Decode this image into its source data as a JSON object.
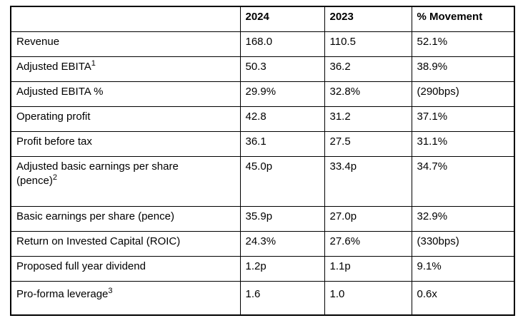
{
  "table": {
    "headers": [
      "",
      "2024",
      "2023",
      "% Movement"
    ],
    "rows": [
      {
        "label_lines": [
          "Revenue"
        ],
        "sup": "",
        "values": [
          "168.0",
          "110.5",
          "52.1%"
        ]
      },
      {
        "label_lines": [
          "Adjusted EBITA"
        ],
        "sup": "1",
        "values": [
          "50.3",
          "36.2",
          "38.9%"
        ]
      },
      {
        "label_lines": [
          "Adjusted EBITA %"
        ],
        "sup": "",
        "values": [
          "29.9%",
          "32.8%",
          "(290bps)"
        ]
      },
      {
        "label_lines": [
          "Operating profit"
        ],
        "sup": "",
        "values": [
          "42.8",
          "31.2",
          "37.1%"
        ]
      },
      {
        "label_lines": [
          "Profit before tax"
        ],
        "sup": "",
        "values": [
          "36.1",
          "27.5",
          "31.1%"
        ]
      },
      {
        "label_lines": [
          "Adjusted basic earnings per share",
          "(pence)"
        ],
        "sup": "2",
        "values": [
          "45.0p",
          "33.4p",
          "34.7%"
        ]
      },
      {
        "label_lines": [
          "Basic earnings per share (pence)"
        ],
        "sup": "",
        "values": [
          "35.9p",
          "27.0p",
          "32.9%"
        ]
      },
      {
        "label_lines": [
          "Return on Invested Capital (ROIC)"
        ],
        "sup": "",
        "values": [
          "24.3%",
          "27.6%",
          "(330bps)"
        ]
      },
      {
        "label_lines": [
          "Proposed full year dividend"
        ],
        "sup": "",
        "values": [
          "1.2p",
          "1.1p",
          "9.1%"
        ]
      },
      {
        "label_lines": [
          "Pro-forma leverage"
        ],
        "sup": "3",
        "values": [
          "1.6",
          "1.0",
          "0.6x"
        ]
      }
    ],
    "colors": {
      "border": "#000000",
      "text": "#000000",
      "background": "#ffffff"
    }
  }
}
